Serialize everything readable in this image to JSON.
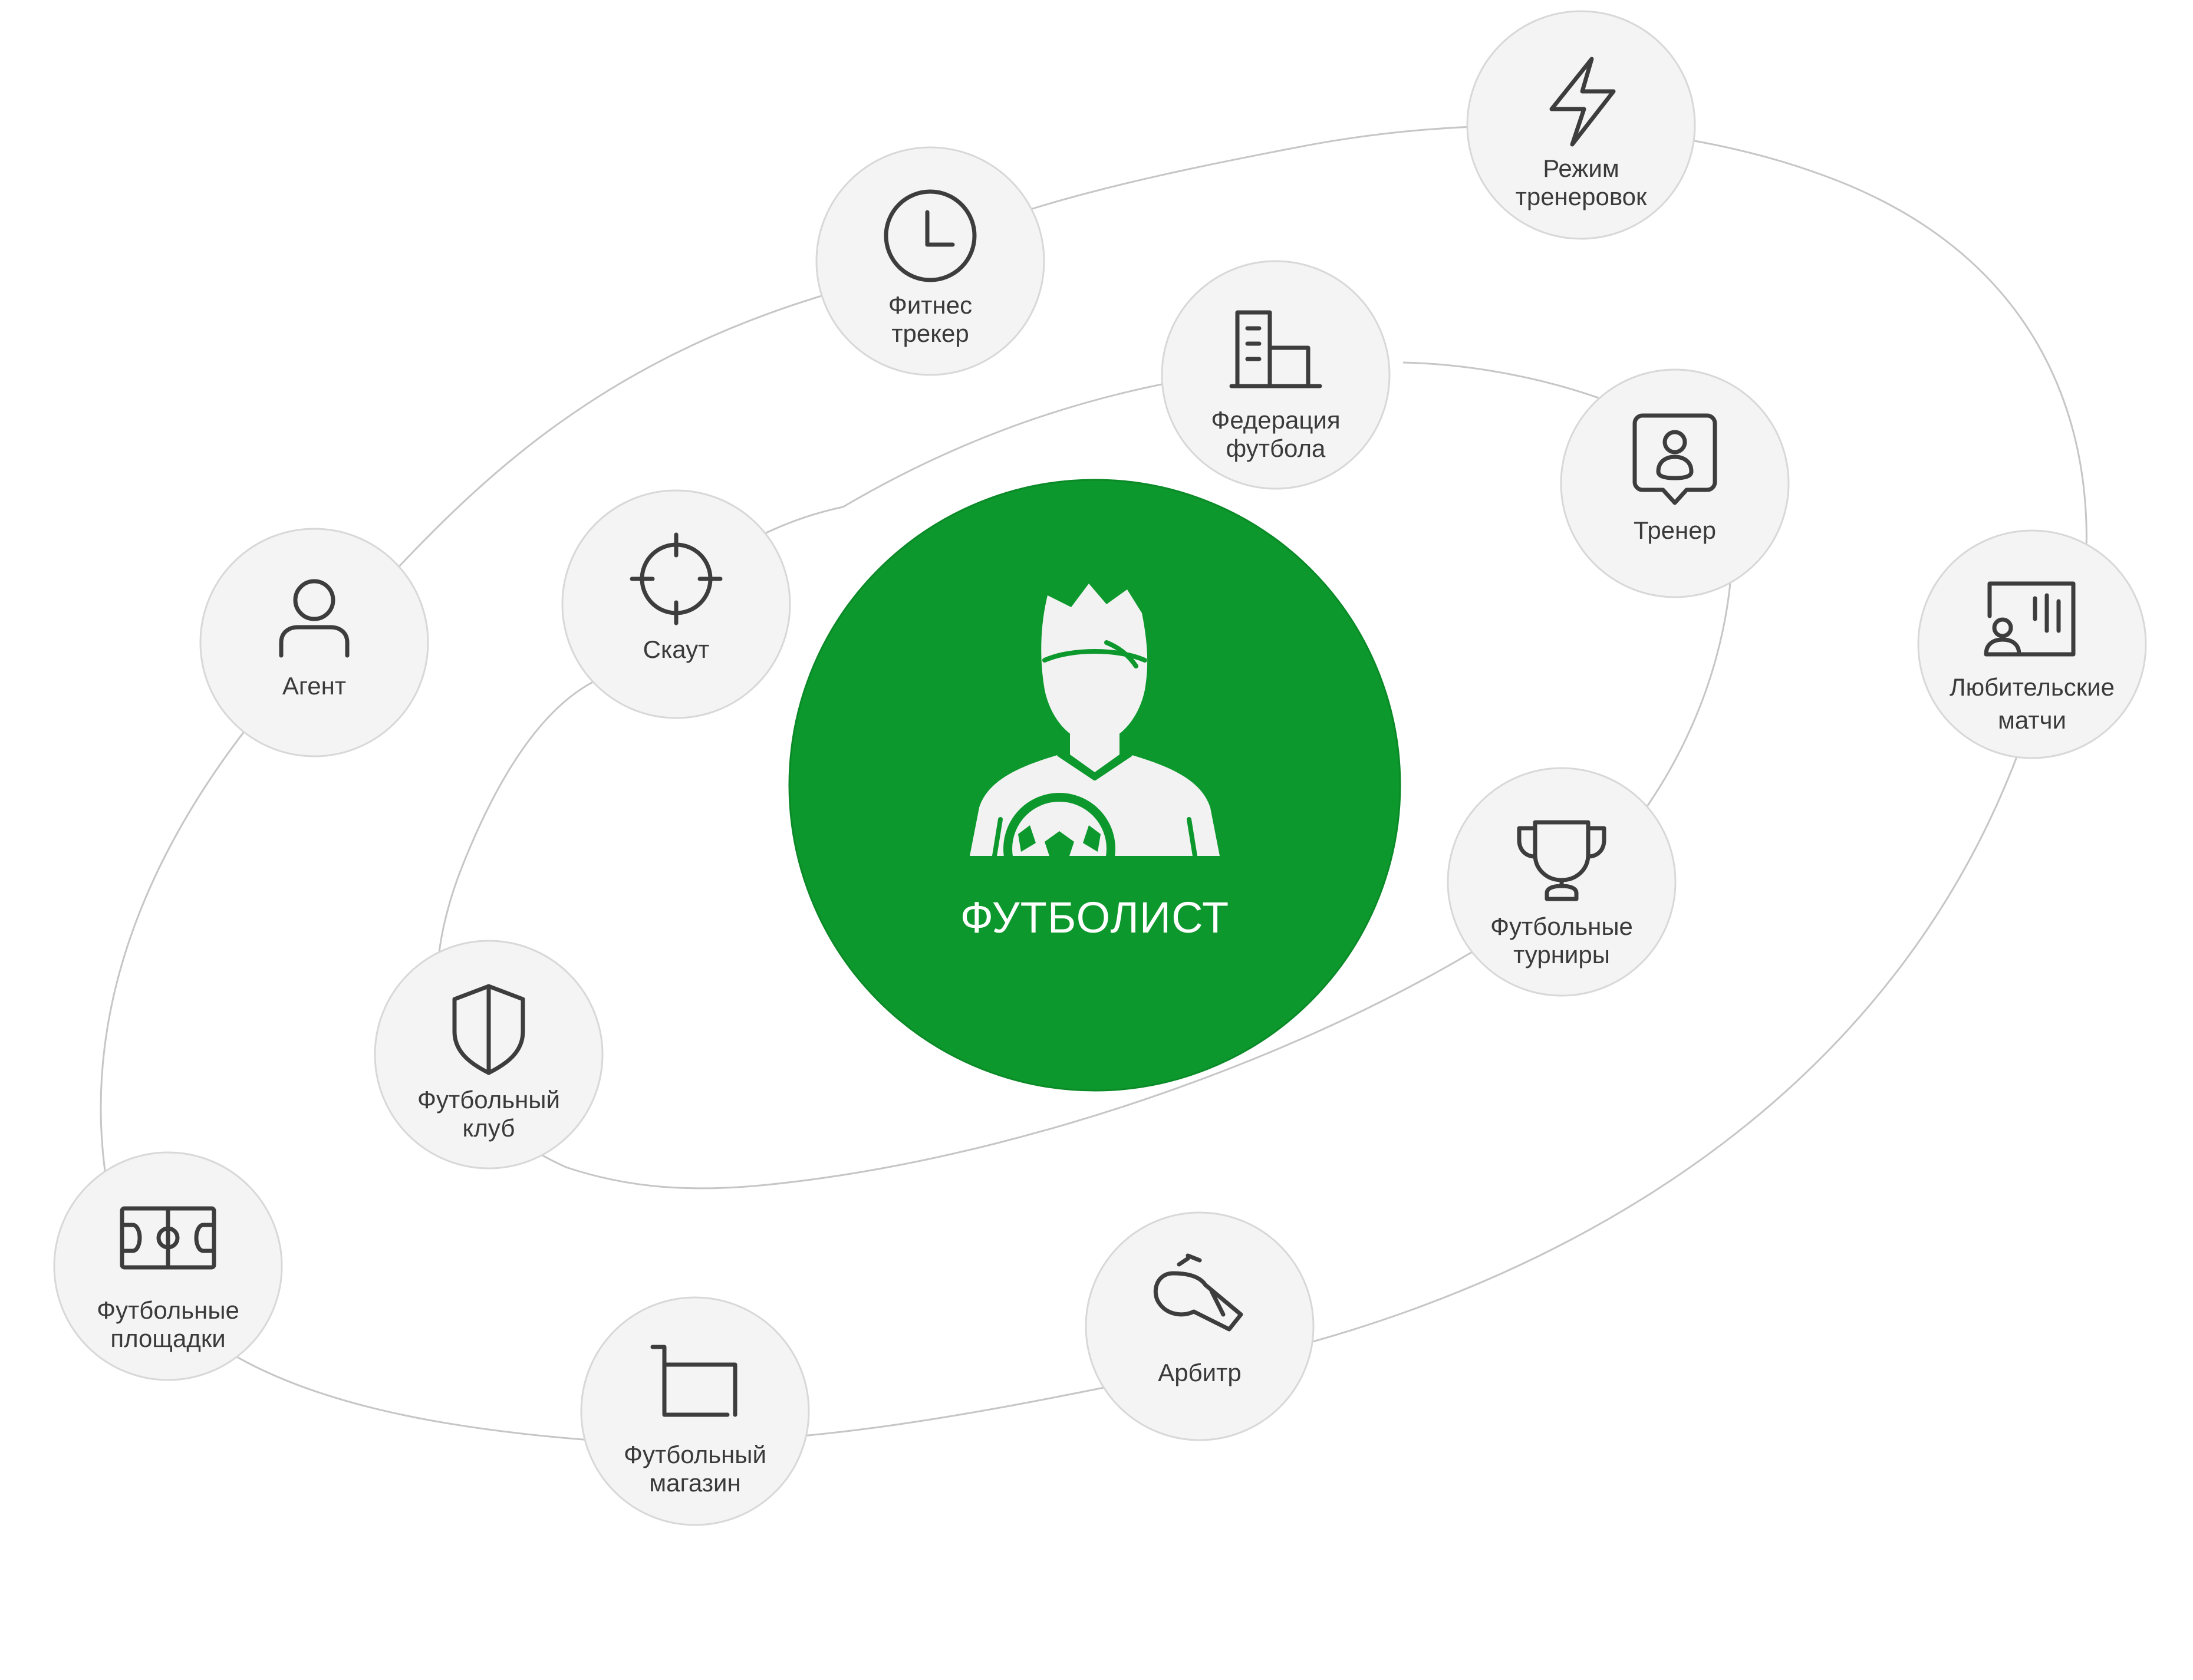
{
  "center": {
    "label": "ФУТБОЛИСТ",
    "icon": "football-player-icon",
    "color": "#0c982c"
  },
  "nodes": {
    "regime": {
      "line1": "Режим",
      "line2": "тренеровок",
      "icon": "lightning-icon"
    },
    "fitness": {
      "line1": "Фитнес",
      "line2": "трекер",
      "icon": "clock-icon"
    },
    "federation": {
      "line1": "Федерация",
      "line2": "футбола",
      "icon": "building-icon"
    },
    "coach": {
      "line1": "Тренер",
      "icon": "coach-badge-icon"
    },
    "amateur": {
      "line1": "Любительские",
      "line2": "матчи",
      "icon": "presentation-board-icon"
    },
    "agent": {
      "line1": "Агент",
      "icon": "person-icon"
    },
    "scout": {
      "line1": "Скаут",
      "icon": "crosshair-icon"
    },
    "tournaments": {
      "line1": "Футбольные",
      "line2": "турниры",
      "icon": "trophy-icon"
    },
    "club": {
      "line1": "Футбольный",
      "line2": "клуб",
      "icon": "shield-icon"
    },
    "fields": {
      "line1": "Футбольные",
      "line2": "площадки",
      "icon": "football-field-icon"
    },
    "shop": {
      "line1": "Футбольный",
      "line2": "магазин",
      "icon": "shopping-cart-icon"
    },
    "referee": {
      "line1": "Арбитр",
      "icon": "whistle-icon"
    }
  }
}
